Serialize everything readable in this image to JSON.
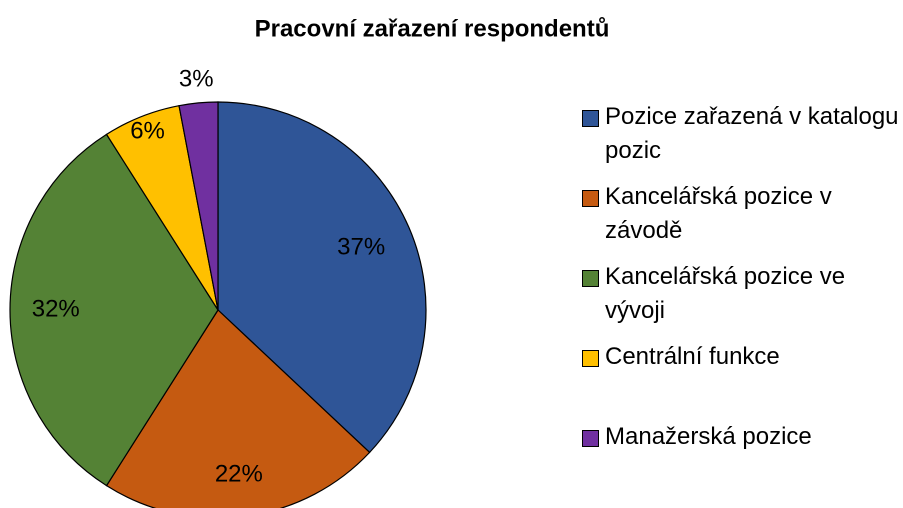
{
  "chart_data": {
    "type": "pie",
    "title": "Pracovní zařazení respondentů",
    "categories": [
      "Pozice zařazená v katalogu pozic",
      "Kancelářská pozice v závodě",
      "Kancelářská pozice ve vývoji",
      "Centrální funkce",
      "Manažerská pozice"
    ],
    "values": [
      37,
      22,
      32,
      6,
      3
    ],
    "value_labels": [
      "37%",
      "22%",
      "32%",
      "6%",
      "3%"
    ],
    "colors": [
      "#2f5597",
      "#c55a11",
      "#548235",
      "#ffc000",
      "#7030a0"
    ],
    "legend": "right"
  }
}
